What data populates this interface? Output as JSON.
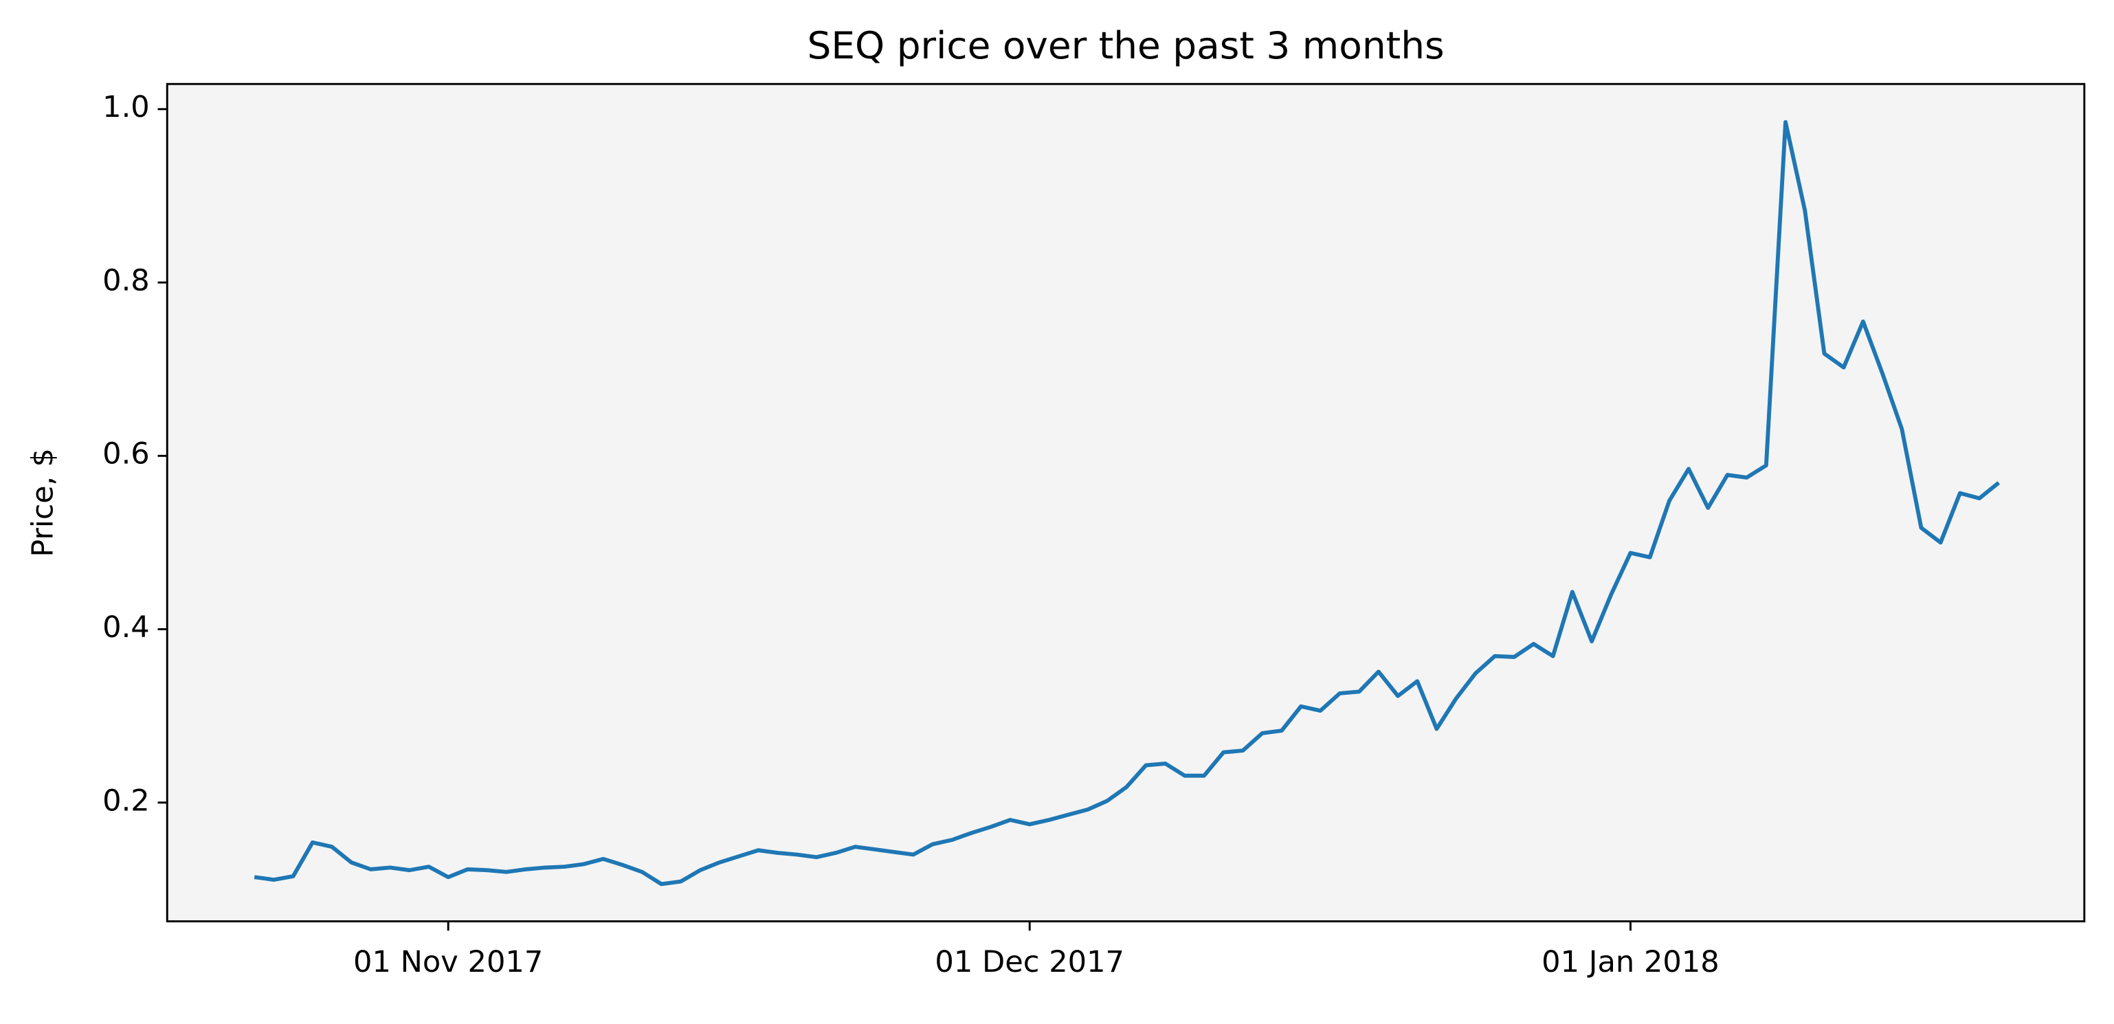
{
  "chart_data": {
    "type": "line",
    "title": "SEQ price over the past 3 months",
    "ylabel": "Price, $",
    "x": [
      "2017-10-22",
      "2017-10-23",
      "2017-10-24",
      "2017-10-25",
      "2017-10-26",
      "2017-10-27",
      "2017-10-28",
      "2017-10-29",
      "2017-10-30",
      "2017-10-31",
      "2017-11-01",
      "2017-11-02",
      "2017-11-03",
      "2017-11-04",
      "2017-11-05",
      "2017-11-06",
      "2017-11-07",
      "2017-11-08",
      "2017-11-09",
      "2017-11-10",
      "2017-11-11",
      "2017-11-12",
      "2017-11-13",
      "2017-11-14",
      "2017-11-15",
      "2017-11-16",
      "2017-11-17",
      "2017-11-18",
      "2017-11-19",
      "2017-11-20",
      "2017-11-21",
      "2017-11-22",
      "2017-11-23",
      "2017-11-24",
      "2017-11-25",
      "2017-11-26",
      "2017-11-27",
      "2017-11-28",
      "2017-11-29",
      "2017-11-30",
      "2017-12-01",
      "2017-12-02",
      "2017-12-03",
      "2017-12-04",
      "2017-12-05",
      "2017-12-06",
      "2017-12-07",
      "2017-12-08",
      "2017-12-09",
      "2017-12-10",
      "2017-12-11",
      "2017-12-12",
      "2017-12-13",
      "2017-12-14",
      "2017-12-15",
      "2017-12-16",
      "2017-12-17",
      "2017-12-18",
      "2017-12-19",
      "2017-12-20",
      "2017-12-21",
      "2017-12-22",
      "2017-12-23",
      "2017-12-24",
      "2017-12-25",
      "2017-12-26",
      "2017-12-27",
      "2017-12-28",
      "2017-12-29",
      "2017-12-30",
      "2017-12-31",
      "2018-01-01",
      "2018-01-02",
      "2018-01-03",
      "2018-01-04",
      "2018-01-05",
      "2018-01-06",
      "2018-01-07",
      "2018-01-08",
      "2018-01-09",
      "2018-01-10",
      "2018-01-11",
      "2018-01-12",
      "2018-01-13",
      "2018-01-14",
      "2018-01-15",
      "2018-01-16",
      "2018-01-17",
      "2018-01-18",
      "2018-01-19",
      "2018-01-20"
    ],
    "series": [
      {
        "name": "SEQ",
        "color": "#1f77b4",
        "values": [
          0.114,
          0.111,
          0.115,
          0.154,
          0.149,
          0.131,
          0.123,
          0.125,
          0.122,
          0.126,
          0.114,
          0.123,
          0.122,
          0.12,
          0.123,
          0.125,
          0.126,
          0.129,
          0.135,
          0.128,
          0.12,
          0.106,
          0.109,
          0.122,
          0.131,
          0.138,
          0.145,
          0.142,
          0.14,
          0.137,
          0.142,
          0.149,
          0.146,
          0.143,
          0.14,
          0.152,
          0.157,
          0.165,
          0.172,
          0.18,
          0.175,
          0.18,
          0.186,
          0.192,
          0.202,
          0.218,
          0.243,
          0.245,
          0.231,
          0.231,
          0.258,
          0.26,
          0.28,
          0.283,
          0.311,
          0.306,
          0.326,
          0.328,
          0.351,
          0.323,
          0.34,
          0.285,
          0.32,
          0.349,
          0.369,
          0.368,
          0.383,
          0.369,
          0.443,
          0.386,
          0.44,
          0.488,
          0.483,
          0.548,
          0.585,
          0.54,
          0.578,
          0.575,
          0.589,
          0.985,
          0.883,
          0.718,
          0.702,
          0.755,
          0.695,
          0.631,
          0.517,
          0.5,
          0.557,
          0.551,
          0.569
        ]
      }
    ],
    "xlim": [
      "2017-10-17T12:00Z",
      "2018-01-24T10:00Z"
    ],
    "xticks": [
      {
        "value": "2017-11-01",
        "label": "01 Nov 2017"
      },
      {
        "value": "2017-12-01",
        "label": "01 Dec 2017"
      },
      {
        "value": "2018-01-01",
        "label": "01 Jan 2018"
      }
    ],
    "ylim": [
      0.063,
      1.029
    ],
    "yticks": [
      0.2,
      0.4,
      0.6,
      0.8,
      {
        "value": 1,
        "label": "1.0"
      }
    ],
    "grid": false,
    "background": "#f4f4f4"
  }
}
